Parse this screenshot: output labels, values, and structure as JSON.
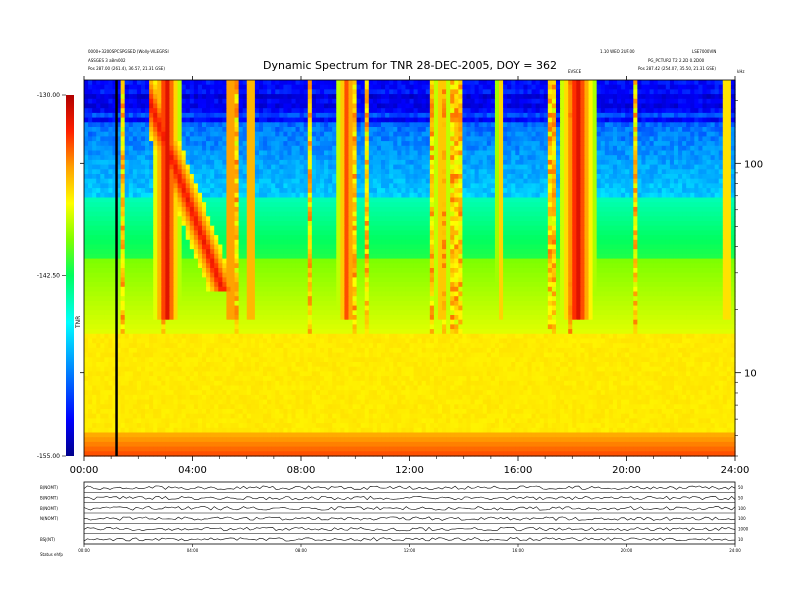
{
  "chart_data": {
    "type": "heatmap",
    "title": "Dynamic Spectrum for TNR 28-DEC-2005, DOY = 362",
    "header_left_1": "0000+3200SPCSPGSED (Wolly-VILEGRSI",
    "header_left_2": "ASSGES 3 a8m002",
    "header_left_3": "Pos  287.00 (261.4), 36.57, 21.31 GSE)",
    "header_right_1": "1.10 WEO 2UF.00",
    "header_right_2": "LSE7000VIN",
    "header_right_3": "PG_PCTUR2 T2 2.2D 0.2D00",
    "header_right_4": "Pos  287.42 (254.07, 35.50, 21.31 GSE)",
    "top_marker": "EVSCE",
    "right_corner_label": "kHz",
    "x_tick_labels": [
      "00:00",
      "04:00",
      "08:00",
      "12:00",
      "16:00",
      "20:00",
      "24:00"
    ],
    "x_range": [
      0,
      24
    ],
    "y_tick_labels": [
      "100",
      "10"
    ],
    "y_scale": "log",
    "y_range_khz": [
      4,
      250
    ],
    "colorbar": {
      "tick_labels": [
        "-130.00",
        "-142.50",
        "-155.00"
      ],
      "range": [
        -155.0,
        -130.0
      ],
      "unit_label": "TNR",
      "colors": [
        "#00008a",
        "#0000ff",
        "#0090ff",
        "#00ffff",
        "#00ff60",
        "#80ff00",
        "#ffff00",
        "#ffa000",
        "#ff2000",
        "#b00000"
      ]
    },
    "vertical_marker_hour": 1.2,
    "bursts": [
      {
        "start": 2.5,
        "end": 3.6,
        "peak": 1.0
      },
      {
        "start": 5.2,
        "end": 5.6,
        "peak": 0.9
      },
      {
        "start": 6.0,
        "end": 6.3,
        "peak": 1.0
      },
      {
        "start": 9.3,
        "end": 10.1,
        "peak": 0.8
      },
      {
        "start": 12.9,
        "end": 13.5,
        "peak": 0.6
      },
      {
        "start": 15.2,
        "end": 15.5,
        "peak": 0.5
      },
      {
        "start": 17.5,
        "end": 18.9,
        "peak": 1.0
      },
      {
        "start": 23.5,
        "end": 23.9,
        "peak": 0.6
      }
    ],
    "time_series_panels": [
      {
        "label": "B(NOMT)",
        "right_label": "50"
      },
      {
        "label": "B(NOMT)",
        "right_label": "50"
      },
      {
        "label": "B(NOMT)",
        "right_label": "100"
      },
      {
        "label": "N(NOMT)",
        "right_label": "100"
      },
      {
        "label": "",
        "right_label": "1000"
      },
      {
        "label": "BSJ(NT)",
        "right_label": "10"
      }
    ],
    "bottom_x_tick_labels": [
      "00:00",
      "04:00",
      "08:00",
      "12:00",
      "16:00",
      "20:00",
      "24:00"
    ],
    "footer_label": "Status   ehfp"
  }
}
